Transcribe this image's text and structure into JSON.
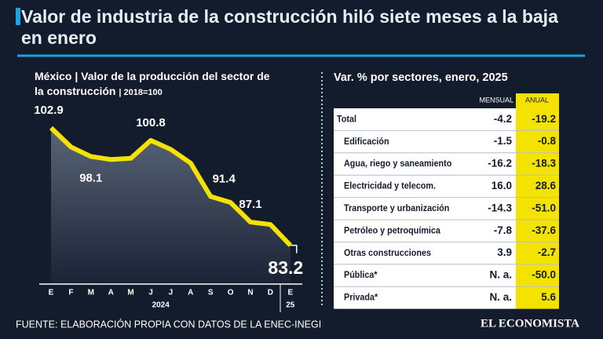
{
  "chart_data": {
    "type": "line",
    "title": "Valor de industria de la construcción hiló siete meses a la baja en enero",
    "subtitle": "México | Valor de la producción del sector de la construcción",
    "unit": "| 2018=100",
    "categories": [
      "E",
      "F",
      "M",
      "A",
      "M",
      "J",
      "J",
      "A",
      "S",
      "O",
      "N",
      "D",
      "E"
    ],
    "x_group_labels": [
      "2024",
      "25"
    ],
    "values": [
      102.9,
      99.7,
      98.1,
      97.6,
      97.8,
      100.8,
      99.3,
      97.0,
      91.4,
      90.4,
      87.1,
      86.7,
      83.2
    ],
    "value_labels": [
      "102.9",
      null,
      "98.1",
      null,
      null,
      "100.8",
      null,
      null,
      "91.4",
      null,
      "87.1",
      null,
      "83.2"
    ],
    "color": "#f4e300",
    "ylim": [
      80,
      105
    ]
  },
  "table": {
    "title": "Var. % por sectores, enero, 2025",
    "columns": [
      "MENSUAL",
      "ANUAL"
    ],
    "rows": [
      [
        "Total",
        "-4.2",
        "-19.2"
      ],
      [
        "Edificación",
        "-1.5",
        "-0.8"
      ],
      [
        "Agua, riego y saneamiento",
        "-16.2",
        "-18.3"
      ],
      [
        "Electricidad y telecom.",
        "16.0",
        "28.6"
      ],
      [
        "Transporte y urbanización",
        "-14.3",
        "-51.0"
      ],
      [
        "Petróleo y petroquímica",
        "-7.8",
        "-37.6"
      ],
      [
        "Otras construcciones",
        "3.9",
        "-2.7"
      ],
      [
        "Pública*",
        "N. a.",
        "-50.0"
      ],
      [
        "Privada*",
        "N. a.",
        "5.6"
      ]
    ]
  },
  "footer": {
    "source": "FUENTE: ELABORACIÓN PROPIA CON DATOS DE LA ENEC-INEGI",
    "brand": "EL ECONOMISTA"
  }
}
